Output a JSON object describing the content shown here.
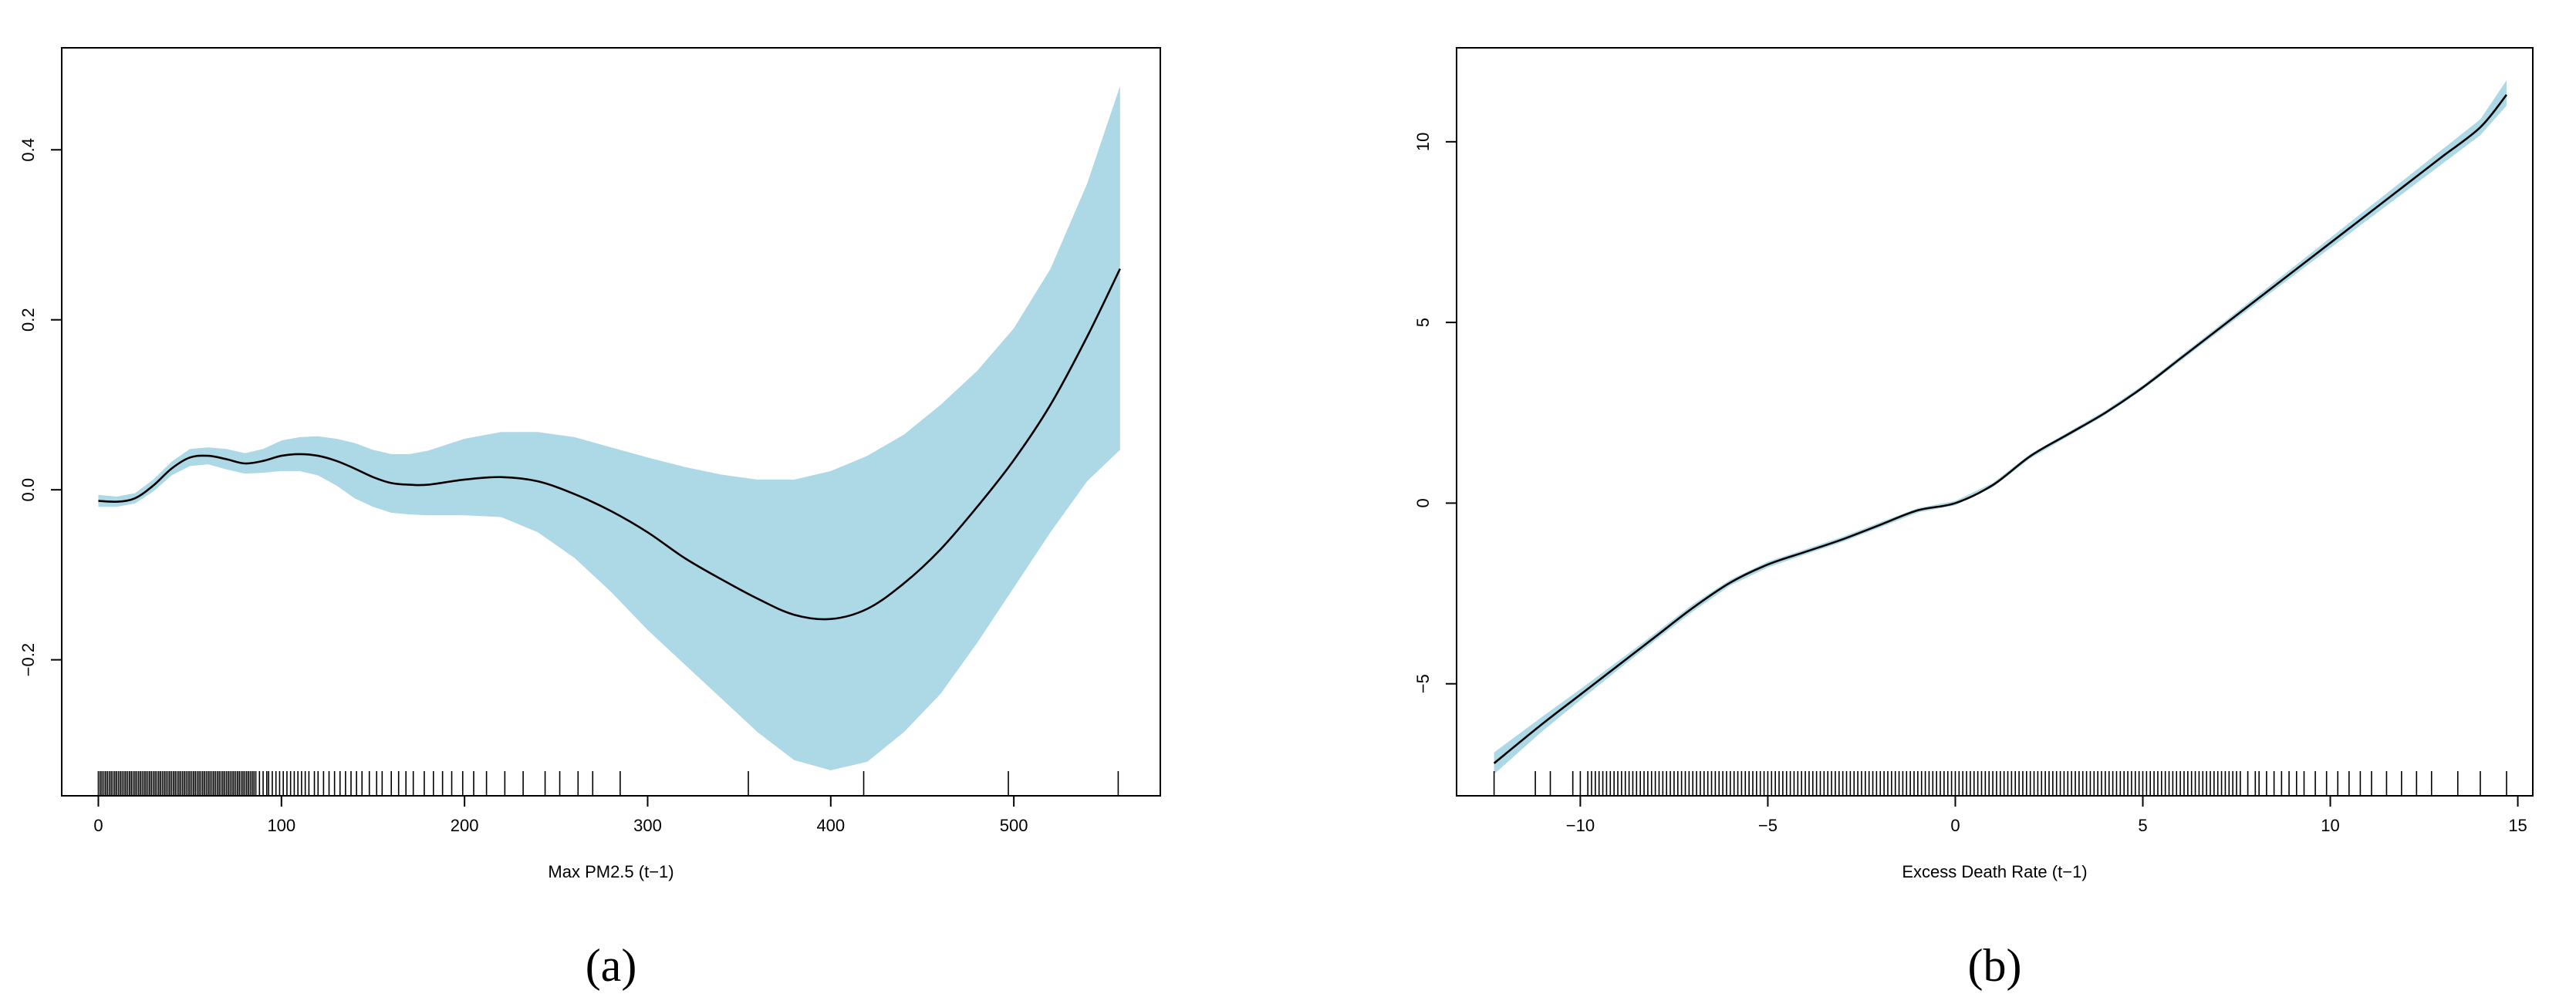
{
  "chart_data": [
    {
      "type": "line",
      "panel_label": "(a)",
      "xlabel": "Max PM2.5 (t−1)",
      "ylabel": "",
      "xlim": [
        -20,
        580
      ],
      "ylim": [
        -0.36,
        0.52
      ],
      "xticks": [
        0,
        100,
        200,
        300,
        400,
        500
      ],
      "yticks": [
        -0.2,
        0.0,
        0.2,
        0.4
      ],
      "xtick_labels": [
        "0",
        "100",
        "200",
        "300",
        "400",
        "500"
      ],
      "ytick_labels": [
        "−0.2",
        "0.0",
        "0.2",
        "0.4"
      ],
      "series": [
        {
          "x": [
            0,
            10,
            20,
            30,
            40,
            50,
            60,
            70,
            80,
            90,
            100,
            110,
            120,
            130,
            140,
            150,
            160,
            170,
            180,
            200,
            220,
            240,
            260,
            280,
            300,
            320,
            340,
            360,
            380,
            400,
            420,
            440,
            460,
            480,
            500,
            520,
            540,
            558
          ],
          "y": [
            -0.013,
            -0.014,
            -0.01,
            0.005,
            0.025,
            0.038,
            0.04,
            0.036,
            0.031,
            0.034,
            0.04,
            0.042,
            0.04,
            0.034,
            0.025,
            0.015,
            0.008,
            0.006,
            0.006,
            0.012,
            0.015,
            0.01,
            -0.005,
            -0.025,
            -0.05,
            -0.08,
            -0.105,
            -0.128,
            -0.147,
            -0.152,
            -0.14,
            -0.11,
            -0.07,
            -0.02,
            0.035,
            0.1,
            0.18,
            0.26
          ],
          "lower": [
            -0.02,
            -0.02,
            -0.016,
            -0.002,
            0.017,
            0.028,
            0.03,
            0.024,
            0.019,
            0.02,
            0.022,
            0.022,
            0.017,
            0.005,
            -0.01,
            -0.02,
            -0.027,
            -0.029,
            -0.03,
            -0.03,
            -0.032,
            -0.05,
            -0.08,
            -0.12,
            -0.165,
            -0.205,
            -0.245,
            -0.285,
            -0.318,
            -0.33,
            -0.32,
            -0.285,
            -0.24,
            -0.18,
            -0.115,
            -0.05,
            0.01,
            0.047
          ],
          "upper": [
            -0.006,
            -0.008,
            -0.004,
            0.012,
            0.033,
            0.048,
            0.05,
            0.048,
            0.043,
            0.048,
            0.058,
            0.062,
            0.063,
            0.06,
            0.055,
            0.047,
            0.042,
            0.042,
            0.046,
            0.06,
            0.068,
            0.068,
            0.062,
            0.05,
            0.038,
            0.027,
            0.018,
            0.012,
            0.012,
            0.022,
            0.04,
            0.065,
            0.1,
            0.14,
            0.19,
            0.26,
            0.36,
            0.475
          ]
        }
      ],
      "rug": [
        0,
        1,
        2,
        3,
        4,
        5,
        6,
        7,
        8,
        9,
        10,
        11,
        12,
        13,
        14,
        15,
        16,
        17,
        18,
        19,
        20,
        21,
        22,
        23,
        24,
        25,
        26,
        27,
        28,
        29,
        30,
        31,
        32,
        33,
        34,
        35,
        36,
        37,
        38,
        39,
        40,
        41,
        42,
        43,
        44,
        45,
        46,
        47,
        48,
        49,
        50,
        51,
        52,
        53,
        54,
        55,
        56,
        57,
        58,
        59,
        60,
        61,
        62,
        63,
        64,
        65,
        66,
        67,
        68,
        69,
        70,
        71,
        72,
        73,
        74,
        75,
        76,
        77,
        78,
        79,
        80,
        81,
        82,
        83,
        84,
        85,
        86,
        88,
        90,
        92,
        93,
        95,
        97,
        99,
        101,
        103,
        105,
        107,
        109,
        111,
        113,
        115,
        118,
        120,
        123,
        126,
        129,
        132,
        135,
        138,
        141,
        144,
        148,
        152,
        155,
        160,
        164,
        168,
        172,
        178,
        183,
        188,
        193,
        199,
        205,
        212,
        222,
        232,
        244,
        252,
        262,
        270,
        285,
        355,
        418,
        497,
        557
      ],
      "ribbon_color": "#add8e6",
      "line_color": "#000000"
    },
    {
      "type": "line",
      "panel_label": "(b)",
      "xlabel": "Excess Death Rate (t−1)",
      "ylabel": "",
      "xlim": [
        -13.3,
        15.4
      ],
      "ylim": [
        -8.1,
        12.6
      ],
      "xticks": [
        -10,
        -5,
        0,
        5,
        10,
        15
      ],
      "yticks": [
        -5,
        0,
        5,
        10
      ],
      "xtick_labels": [
        "−10",
        "−5",
        "0",
        "5",
        "10",
        "15"
      ],
      "ytick_labels": [
        "−5",
        "0",
        "5",
        "10"
      ],
      "series": [
        {
          "x": [
            -12.3,
            -11,
            -10,
            -9,
            -8,
            -7,
            -6,
            -5,
            -4,
            -3,
            -2,
            -1,
            0,
            1,
            2,
            3,
            4,
            5,
            6,
            7,
            8,
            9,
            10,
            11,
            12,
            13,
            14,
            14.7
          ],
          "y": [
            -7.2,
            -6.1,
            -5.3,
            -4.5,
            -3.7,
            -2.9,
            -2.2,
            -1.7,
            -1.35,
            -1.0,
            -0.6,
            -0.2,
            0.0,
            0.5,
            1.3,
            1.9,
            2.5,
            3.2,
            4.0,
            4.8,
            5.6,
            6.4,
            7.2,
            8.0,
            8.8,
            9.6,
            10.4,
            11.3
          ],
          "lower": [
            -7.5,
            -6.3,
            -5.45,
            -4.62,
            -3.8,
            -3.0,
            -2.28,
            -1.78,
            -1.42,
            -1.07,
            -0.67,
            -0.26,
            -0.06,
            0.44,
            1.24,
            1.84,
            2.44,
            3.14,
            3.93,
            4.72,
            5.5,
            6.28,
            7.06,
            7.84,
            8.62,
            9.4,
            10.18,
            11.0
          ],
          "upper": [
            -6.9,
            -5.9,
            -5.15,
            -4.38,
            -3.6,
            -2.8,
            -2.12,
            -1.62,
            -1.28,
            -0.93,
            -0.53,
            -0.14,
            0.06,
            0.56,
            1.36,
            1.96,
            2.56,
            3.26,
            4.07,
            4.88,
            5.7,
            6.52,
            7.34,
            8.16,
            8.98,
            9.8,
            10.62,
            11.7
          ]
        }
      ],
      "rug": [
        -12.3,
        -11.2,
        -10.8,
        -10.2,
        -10.0,
        -9.8,
        -9.7,
        -9.6,
        -9.5,
        -9.4,
        -9.3,
        -9.2,
        -9.1,
        -9.0,
        -8.9,
        -8.8,
        -8.7,
        -8.6,
        -8.5,
        -8.4,
        -8.3,
        -8.2,
        -8.1,
        -8.0,
        -7.9,
        -7.8,
        -7.7,
        -7.6,
        -7.5,
        -7.4,
        -7.3,
        -7.2,
        -7.1,
        -7.0,
        -6.9,
        -6.8,
        -6.7,
        -6.6,
        -6.5,
        -6.4,
        -6.3,
        -6.2,
        -6.1,
        -6.0,
        -5.9,
        -5.8,
        -5.7,
        -5.6,
        -5.5,
        -5.4,
        -5.3,
        -5.2,
        -5.1,
        -5.0,
        -4.9,
        -4.8,
        -4.7,
        -4.6,
        -4.5,
        -4.4,
        -4.3,
        -4.2,
        -4.1,
        -4.0,
        -3.9,
        -3.8,
        -3.7,
        -3.6,
        -3.5,
        -3.4,
        -3.3,
        -3.2,
        -3.1,
        -3.0,
        -2.9,
        -2.8,
        -2.7,
        -2.6,
        -2.5,
        -2.4,
        -2.3,
        -2.2,
        -2.1,
        -2.0,
        -1.9,
        -1.8,
        -1.7,
        -1.6,
        -1.5,
        -1.4,
        -1.3,
        -1.2,
        -1.1,
        -1.0,
        -0.9,
        -0.8,
        -0.7,
        -0.6,
        -0.5,
        -0.4,
        -0.3,
        -0.2,
        -0.1,
        0.0,
        0.1,
        0.2,
        0.3,
        0.4,
        0.5,
        0.6,
        0.7,
        0.8,
        0.9,
        1.0,
        1.1,
        1.2,
        1.3,
        1.4,
        1.5,
        1.6,
        1.7,
        1.8,
        1.9,
        2.0,
        2.1,
        2.2,
        2.3,
        2.4,
        2.5,
        2.6,
        2.7,
        2.8,
        2.9,
        3.0,
        3.1,
        3.2,
        3.3,
        3.4,
        3.5,
        3.6,
        3.7,
        3.8,
        3.9,
        4.0,
        4.1,
        4.2,
        4.3,
        4.4,
        4.5,
        4.6,
        4.7,
        4.8,
        4.9,
        5.0,
        5.1,
        5.2,
        5.3,
        5.4,
        5.5,
        5.6,
        5.7,
        5.8,
        5.9,
        6.0,
        6.1,
        6.2,
        6.3,
        6.4,
        6.5,
        6.6,
        6.7,
        6.8,
        6.9,
        7.0,
        7.1,
        7.2,
        7.3,
        7.4,
        7.5,
        7.6,
        7.8,
        8.0,
        8.1,
        8.3,
        8.5,
        8.7,
        8.9,
        9.1,
        9.3,
        9.6,
        9.9,
        10.2,
        10.5,
        10.8,
        11.1,
        11.5,
        11.9,
        12.3,
        12.7,
        13.4,
        14.0,
        14.7
      ],
      "ribbon_color": "#add8e6",
      "line_color": "#000000"
    }
  ]
}
